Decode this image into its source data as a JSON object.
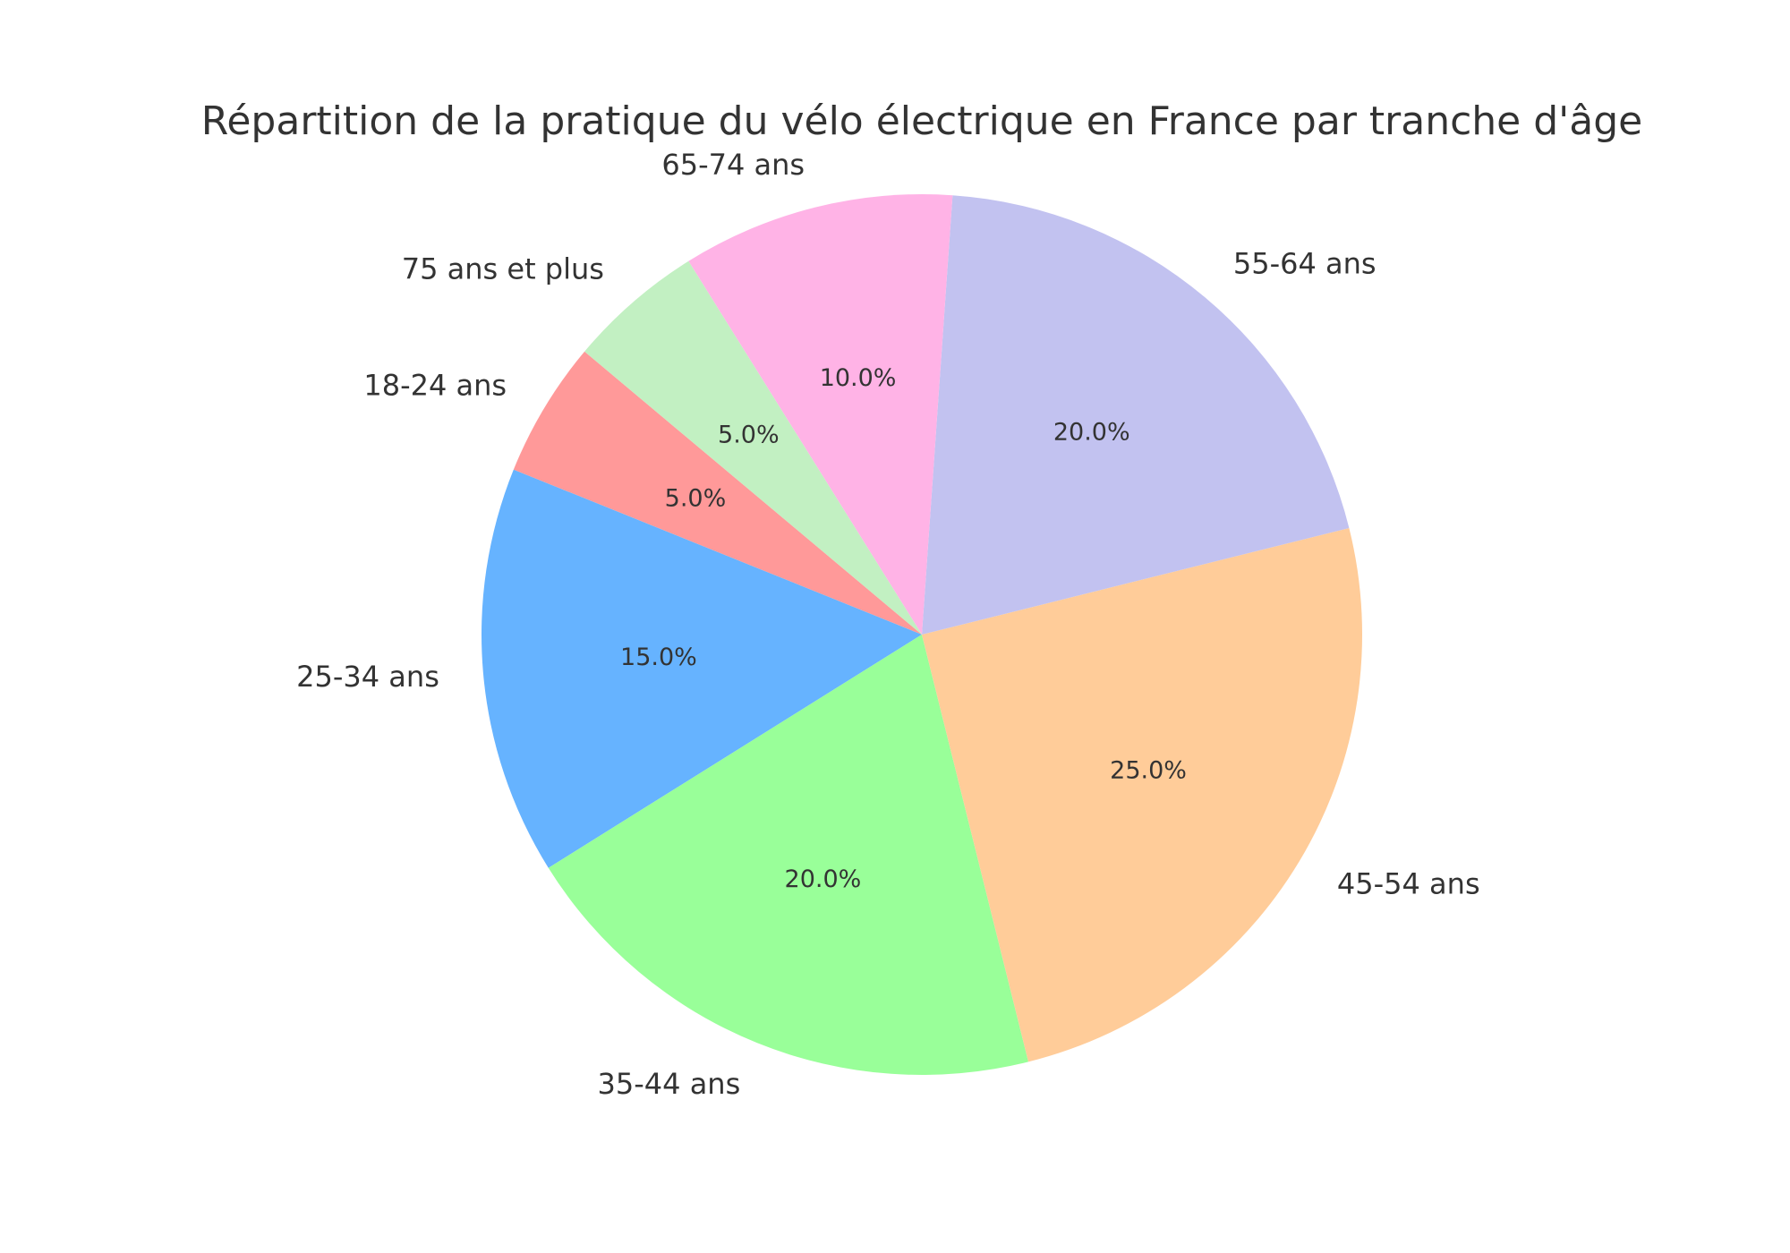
{
  "chart_data": {
    "type": "pie",
    "title": "Répartition de la pratique du vélo électrique en France par tranche d'âge",
    "start_angle_deg": 140,
    "direction": "counterclockwise",
    "slices": [
      {
        "label": "18-24 ans",
        "value": 5,
        "pct_label": "5.0%",
        "color": "#ff9999"
      },
      {
        "label": "25-34 ans",
        "value": 15,
        "pct_label": "15.0%",
        "color": "#66b3ff"
      },
      {
        "label": "35-44 ans",
        "value": 20,
        "pct_label": "20.0%",
        "color": "#99ff99"
      },
      {
        "label": "45-54 ans",
        "value": 25,
        "pct_label": "25.0%",
        "color": "#ffcc99"
      },
      {
        "label": "55-64 ans",
        "value": 20,
        "pct_label": "20.0%",
        "color": "#c2c2f0"
      },
      {
        "label": "65-74 ans",
        "value": 10,
        "pct_label": "10.0%",
        "color": "#ffb3e6"
      },
      {
        "label": "75 ans et plus",
        "value": 5,
        "pct_label": "5.0%",
        "color": "#c2f0c2"
      }
    ]
  }
}
